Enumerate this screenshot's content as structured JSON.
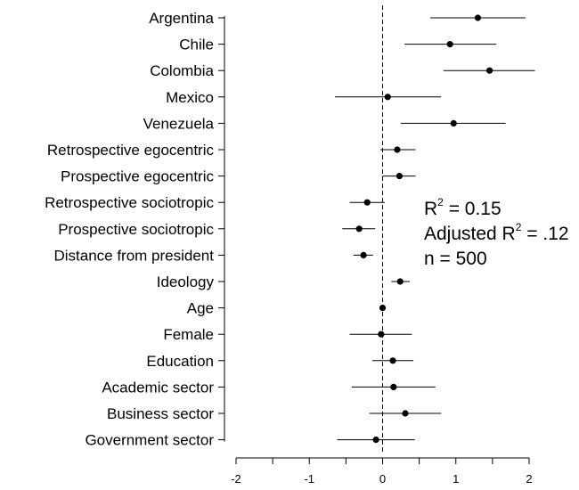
{
  "chart_data": {
    "type": "scatter",
    "subtype": "coefficient-plot",
    "title": "",
    "xlabel": "",
    "ylabel": "",
    "xlim": [
      -2,
      2
    ],
    "x_ticks": [
      -2,
      -1.5,
      -1,
      -0.5,
      0,
      0.5,
      1,
      1.5,
      2
    ],
    "x_tick_labels": [
      "-2",
      "",
      "-1",
      "",
      "0",
      "",
      "1",
      "",
      "2"
    ],
    "reference_line": {
      "x": 0,
      "style": "dashed"
    },
    "grid": false,
    "legend": "none",
    "variables": [
      {
        "label": "Argentina",
        "estimate": 1.3,
        "low": 0.65,
        "high": 1.95
      },
      {
        "label": "Chile",
        "estimate": 0.92,
        "low": 0.3,
        "high": 1.55
      },
      {
        "label": "Colombia",
        "estimate": 1.46,
        "low": 0.83,
        "high": 2.08
      },
      {
        "label": "Mexico",
        "estimate": 0.07,
        "low": -0.65,
        "high": 0.8
      },
      {
        "label": "Venezuela",
        "estimate": 0.97,
        "low": 0.25,
        "high": 1.68
      },
      {
        "label": "Retrospective egocentric",
        "estimate": 0.2,
        "low": -0.03,
        "high": 0.45
      },
      {
        "label": "Prospective egocentric",
        "estimate": 0.23,
        "low": 0.0,
        "high": 0.45
      },
      {
        "label": "Retrospective sociotropic",
        "estimate": -0.21,
        "low": -0.45,
        "high": 0.03
      },
      {
        "label": "Prospective sociotropic",
        "estimate": -0.32,
        "low": -0.55,
        "high": -0.1
      },
      {
        "label": "Distance from president",
        "estimate": -0.26,
        "low": -0.4,
        "high": -0.13
      },
      {
        "label": "Ideology",
        "estimate": 0.24,
        "low": 0.12,
        "high": 0.37
      },
      {
        "label": "Age",
        "estimate": 0.0,
        "low": -0.03,
        "high": 0.03
      },
      {
        "label": "Female",
        "estimate": -0.02,
        "low": -0.45,
        "high": 0.4
      },
      {
        "label": "Education",
        "estimate": 0.14,
        "low": -0.14,
        "high": 0.42
      },
      {
        "label": "Academic sector",
        "estimate": 0.15,
        "low": -0.42,
        "high": 0.72
      },
      {
        "label": "Business sector",
        "estimate": 0.31,
        "low": -0.18,
        "high": 0.8
      },
      {
        "label": "Government sector",
        "estimate": -0.09,
        "low": -0.62,
        "high": 0.44
      }
    ],
    "annotations": {
      "r2_prefix": "R",
      "r2_value": " = 0.15",
      "adj_prefix": "Adjusted R",
      "adj_value": " = .12",
      "superscript": "2",
      "n_text": "n = 500"
    }
  }
}
